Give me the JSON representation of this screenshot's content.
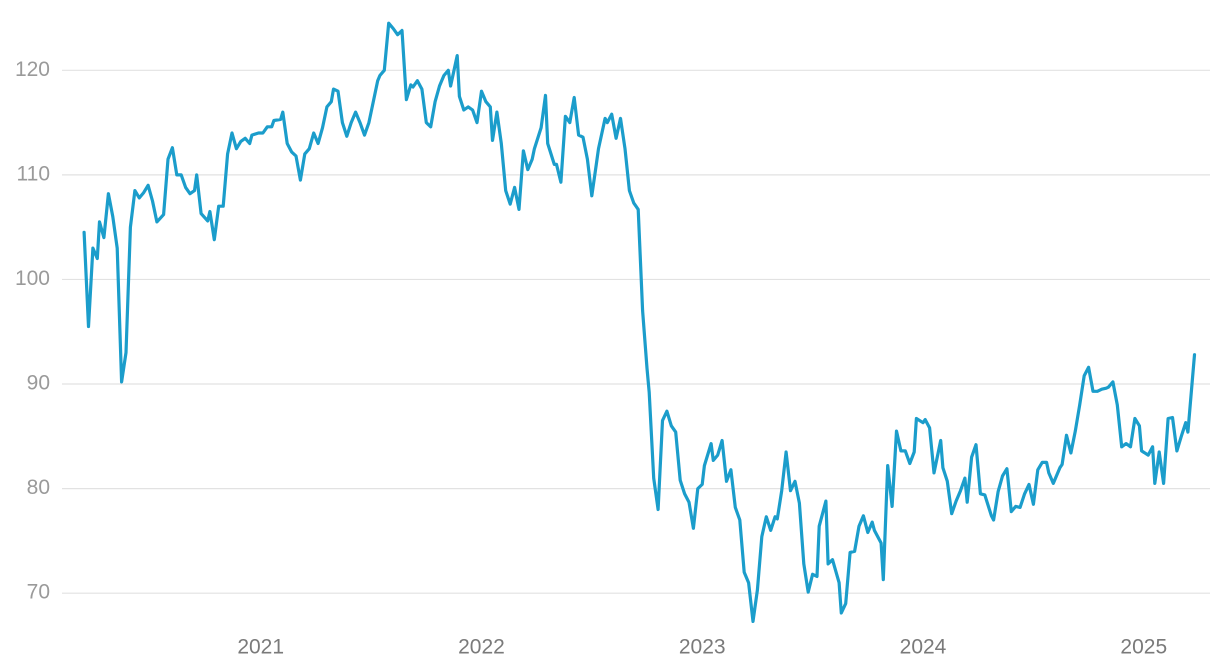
{
  "chart_data": {
    "type": "line",
    "x": [
      2020.2,
      2020.22,
      2020.24,
      2020.26,
      2020.27,
      2020.29,
      2020.31,
      2020.33,
      2020.35,
      2020.37,
      2020.39,
      2020.41,
      2020.43,
      2020.45,
      2020.47,
      2020.49,
      2020.51,
      2020.53,
      2020.56,
      2020.58,
      2020.6,
      2020.62,
      2020.64,
      2020.66,
      2020.68,
      2020.7,
      2020.71,
      2020.73,
      2020.76,
      2020.77,
      2020.79,
      2020.81,
      2020.83,
      2020.85,
      2020.87,
      2020.89,
      2020.91,
      2020.93,
      2020.95,
      2020.96,
      2020.99,
      2021.01,
      2021.03,
      2021.05,
      2021.06,
      2021.09,
      2021.1,
      2021.12,
      2021.14,
      2021.16,
      2021.18,
      2021.2,
      2021.22,
      2021.24,
      2021.26,
      2021.28,
      2021.3,
      2021.32,
      2021.33,
      2021.35,
      2021.37,
      2021.39,
      2021.41,
      2021.43,
      2021.45,
      2021.47,
      2021.49,
      2021.51,
      2021.53,
      2021.54,
      2021.56,
      2021.58,
      2021.6,
      2021.62,
      2021.64,
      2021.66,
      2021.68,
      2021.69,
      2021.71,
      2021.73,
      2021.75,
      2021.77,
      2021.79,
      2021.81,
      2021.83,
      2021.85,
      2021.86,
      2021.89,
      2021.9,
      2021.92,
      2021.94,
      2021.96,
      2021.98,
      2022.0,
      2022.02,
      2022.04,
      2022.05,
      2022.07,
      2022.09,
      2022.11,
      2022.13,
      2022.15,
      2022.17,
      2022.19,
      2022.21,
      2022.23,
      2022.24,
      2022.27,
      2022.29,
      2022.3,
      2022.33,
      2022.34,
      2022.36,
      2022.38,
      2022.4,
      2022.42,
      2022.44,
      2022.46,
      2022.48,
      2022.5,
      2022.52,
      2022.53,
      2022.56,
      2022.57,
      2022.59,
      2022.61,
      2022.63,
      2022.65,
      2022.67,
      2022.69,
      2022.71,
      2022.73,
      2022.75,
      2022.76,
      2022.78,
      2022.8,
      2022.82,
      2022.84,
      2022.86,
      2022.88,
      2022.9,
      2022.92,
      2022.94,
      2022.96,
      2022.98,
      2023.0,
      2023.01,
      2023.04,
      2023.05,
      2023.07,
      2023.09,
      2023.11,
      2023.13,
      2023.15,
      2023.17,
      2023.19,
      2023.21,
      2023.23,
      2023.25,
      2023.27,
      2023.29,
      2023.31,
      2023.33,
      2023.34,
      2023.36,
      2023.38,
      2023.4,
      2023.42,
      2023.44,
      2023.46,
      2023.48,
      2023.5,
      2023.52,
      2023.53,
      2023.56,
      2023.57,
      2023.59,
      2023.62,
      2023.63,
      2023.65,
      2023.67,
      2023.69,
      2023.71,
      2023.73,
      2023.75,
      2023.77,
      2023.78,
      2023.81,
      2023.82,
      2023.84,
      2023.86,
      2023.88,
      2023.9,
      2023.92,
      2023.94,
      2023.96,
      2023.97,
      2024.0,
      2024.01,
      2024.03,
      2024.05,
      2024.08,
      2024.09,
      2024.11,
      2024.13,
      2024.15,
      2024.17,
      2024.19,
      2024.2,
      2024.22,
      2024.24,
      2024.26,
      2024.28,
      2024.31,
      2024.32,
      2024.34,
      2024.36,
      2024.38,
      2024.4,
      2024.42,
      2024.44,
      2024.46,
      2024.48,
      2024.5,
      2024.52,
      2024.54,
      2024.56,
      2024.57,
      2024.59,
      2024.62,
      2024.63,
      2024.65,
      2024.67,
      2024.69,
      2024.71,
      2024.73,
      2024.75,
      2024.77,
      2024.79,
      2024.81,
      2024.83,
      2024.84,
      2024.86,
      2024.88,
      2024.9,
      2024.92,
      2024.94,
      2024.96,
      2024.98,
      2024.99,
      2025.02,
      2025.04,
      2025.05,
      2025.07,
      2025.09,
      2025.11,
      2025.13,
      2025.15,
      2025.17,
      2025.19,
      2025.2,
      2025.23
    ],
    "series": [
      {
        "color": "#1b9dcb",
        "values": [
          104.5,
          95.5,
          103,
          102,
          105.5,
          104,
          108.2,
          106,
          103,
          90.2,
          93,
          105,
          108.5,
          107.8,
          108.3,
          109,
          107.5,
          105.5,
          106.2,
          111.5,
          112.6,
          110,
          110,
          108.8,
          108.2,
          108.5,
          110,
          106.3,
          105.6,
          106.5,
          103.8,
          107,
          107,
          112,
          114,
          112.5,
          113.2,
          113.5,
          113,
          113.8,
          114,
          114,
          114.6,
          114.6,
          115.2,
          115.3,
          116,
          113,
          112.2,
          111.8,
          109.5,
          112,
          112.5,
          114,
          113,
          114.5,
          116.5,
          117,
          118.2,
          118,
          115,
          113.7,
          115,
          116,
          115,
          113.8,
          115,
          117,
          119,
          119.5,
          120,
          124.5,
          124,
          123.4,
          123.8,
          117.2,
          118.6,
          118.4,
          119,
          118.2,
          115,
          114.6,
          117,
          118.5,
          119.5,
          120,
          118.5,
          121.4,
          117.5,
          116.2,
          116.5,
          116.2,
          115,
          118,
          117,
          116.5,
          113.3,
          116,
          113,
          108.5,
          107.2,
          108.8,
          106.7,
          112.3,
          110.5,
          111.5,
          112.5,
          114.5,
          117.6,
          113,
          111,
          111,
          109.3,
          115.6,
          115,
          117.4,
          113.8,
          113.6,
          111.5,
          108,
          111,
          112.5,
          115.4,
          115,
          115.8,
          113.5,
          115.4,
          112.5,
          108.5,
          107.3,
          106.7,
          97,
          91.5,
          89.2,
          81,
          78,
          86.5,
          87.4,
          86,
          85.4,
          80.8,
          79.5,
          78.7,
          76.2,
          80,
          80.4,
          82.2,
          84.3,
          82.7,
          83.2,
          84.6,
          80.7,
          81.8,
          78.2,
          77,
          72,
          71,
          67.3,
          70.3,
          75.4,
          77.3,
          76,
          77.3,
          77.1,
          79.8,
          83.5,
          79.8,
          80.7,
          78.6,
          72.8,
          70.1,
          71.8,
          71.6,
          76.4,
          78.8,
          72.8,
          73.2,
          71,
          68.1,
          69,
          73.9,
          74,
          76.4,
          77.4,
          75.8,
          76.8,
          76,
          74.8,
          71.3,
          82.2,
          78.3,
          85.5,
          83.6,
          83.6,
          82.4,
          83.5,
          86.7,
          86.3,
          86.6,
          85.8,
          81.5,
          84.6,
          82,
          80.7,
          77.6,
          78.8,
          79.8,
          81,
          78.7,
          83,
          84.2,
          79.5,
          79.4,
          77.4,
          77,
          79.7,
          81.2,
          81.9,
          77.8,
          78.3,
          78.2,
          79.5,
          80.4,
          78.5,
          81.8,
          82.5,
          82.5,
          81.5,
          80.5,
          82,
          82.3,
          85.1,
          83.4,
          85.5,
          88,
          90.8,
          91.6,
          89.3,
          89.3,
          89.5,
          89.6,
          89.7,
          90.2,
          88,
          84,
          84.3,
          84,
          86.7,
          86,
          83.6,
          83.2,
          84,
          80.5,
          83.5,
          80.5,
          86.7,
          86.8,
          83.6,
          85,
          86.3,
          85.4,
          92.8
        ]
      }
    ],
    "xlim": [
      2020.1,
      2025.3
    ],
    "xticks": [
      2021,
      2022,
      2023,
      2024,
      2025
    ],
    "ylim": [
      66,
      125
    ],
    "yticks": [
      70,
      80,
      90,
      100,
      110,
      120
    ],
    "grid": true
  }
}
